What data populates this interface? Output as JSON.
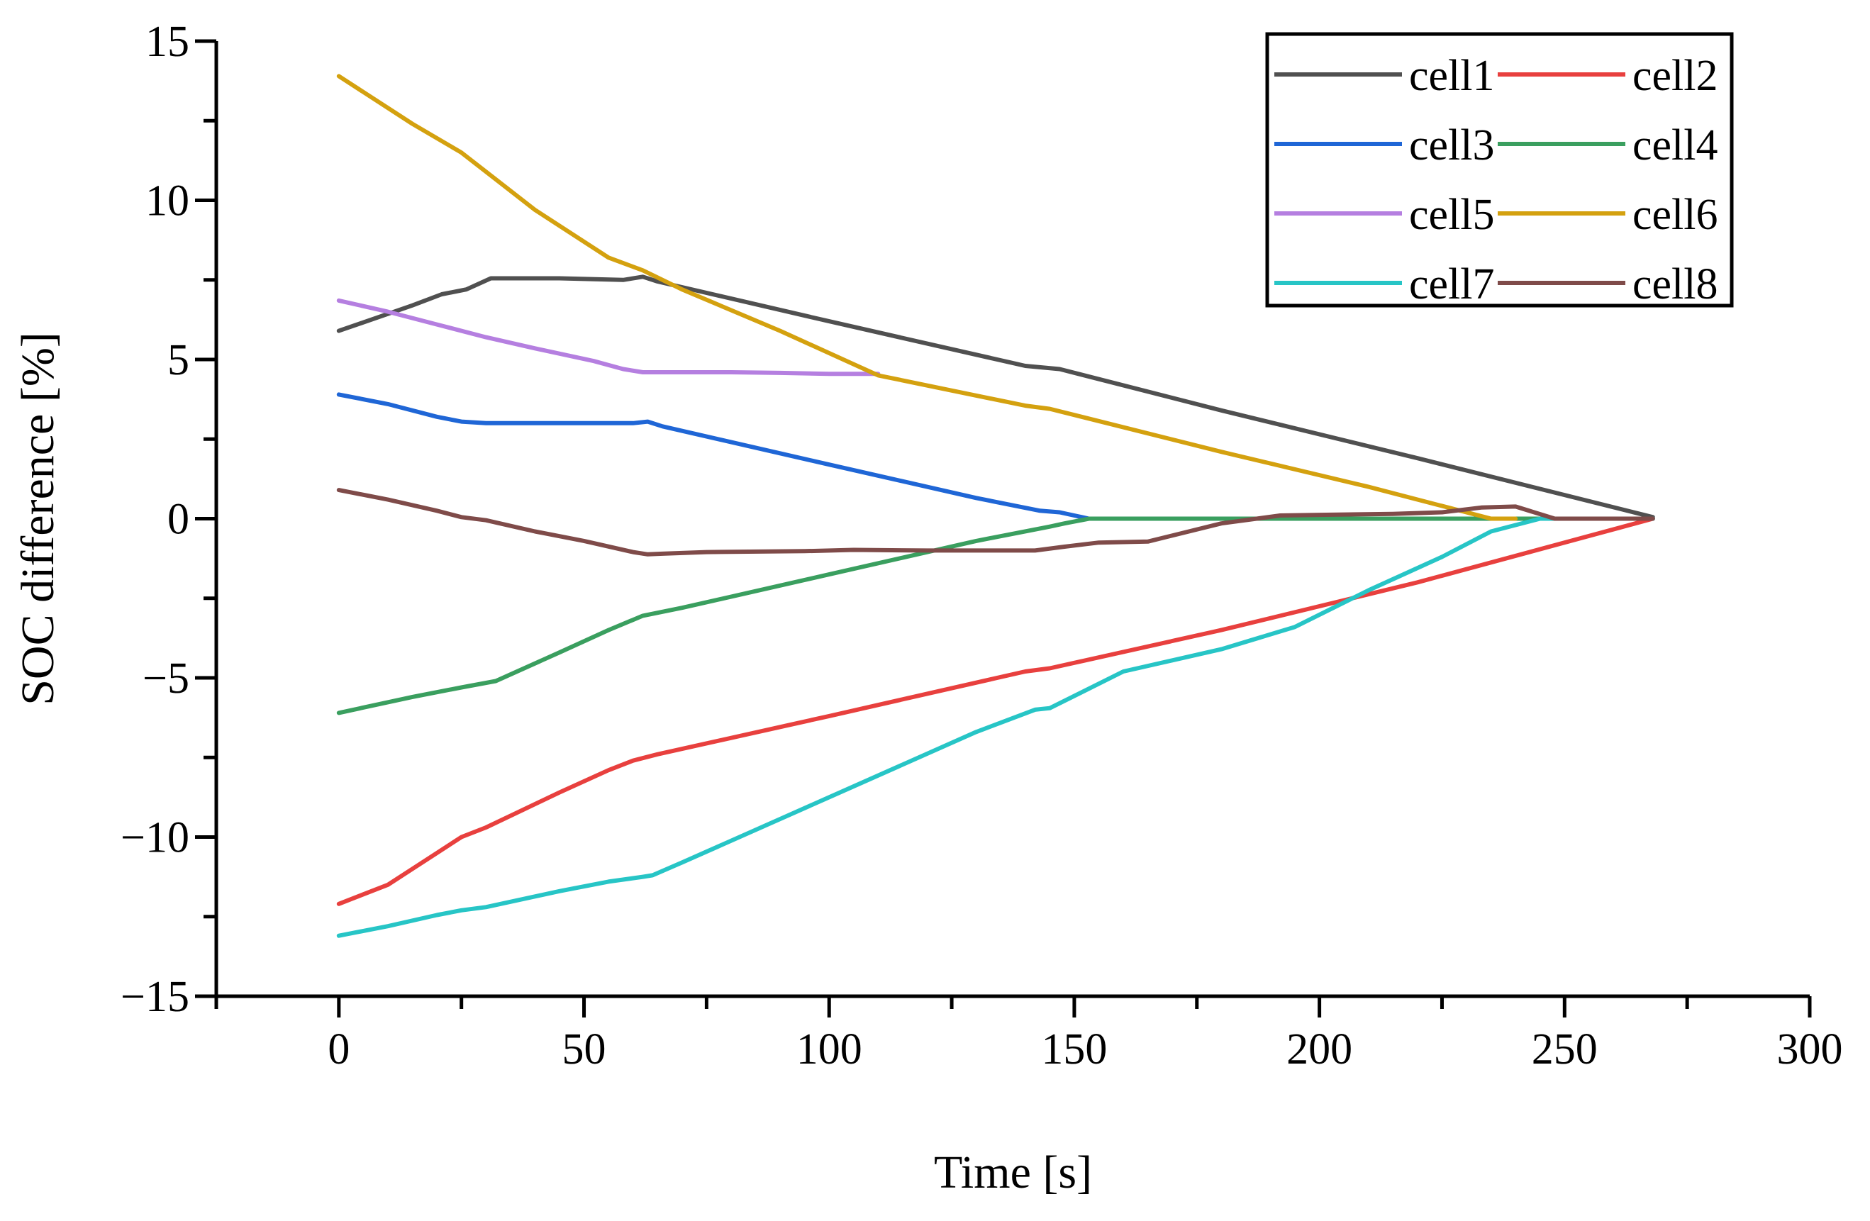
{
  "chart_data": {
    "type": "line",
    "title": "",
    "xlabel": "Time [s]",
    "ylabel": "SOC difference [%]",
    "xlim": [
      -25,
      300
    ],
    "ylim": [
      -15,
      15
    ],
    "xticks": [
      0,
      50,
      100,
      150,
      200,
      250,
      300
    ],
    "xtick_labels": [
      "0",
      "50",
      "100",
      "150",
      "200",
      "250",
      "300"
    ],
    "yticks": [
      -15,
      -10,
      -5,
      0,
      5,
      10,
      15
    ],
    "ytick_labels": [
      "−15",
      "−10",
      "−5",
      "0",
      "5",
      "10",
      "15"
    ],
    "grid": false,
    "legend_position": "top-right",
    "series": [
      {
        "name": "cell1",
        "color": "#505050",
        "x": [
          0,
          15,
          21,
          26,
          31,
          45,
          58,
          62,
          65,
          100,
          140,
          147,
          180,
          220,
          268
        ],
        "y": [
          5.9,
          6.7,
          7.05,
          7.2,
          7.55,
          7.55,
          7.5,
          7.6,
          7.45,
          6.2,
          4.8,
          4.7,
          3.4,
          1.9,
          0.05
        ]
      },
      {
        "name": "cell2",
        "color": "#E8403E",
        "x": [
          0,
          10,
          15,
          20,
          25,
          30,
          45,
          55,
          60,
          65,
          100,
          140,
          145,
          180,
          220,
          268
        ],
        "y": [
          -12.1,
          -11.5,
          -11.0,
          -10.5,
          -10.0,
          -9.7,
          -8.6,
          -7.9,
          -7.6,
          -7.4,
          -6.2,
          -4.8,
          -4.7,
          -3.5,
          -2.0,
          0.0
        ]
      },
      {
        "name": "cell3",
        "color": "#1F66D6",
        "x": [
          0,
          10,
          20,
          25,
          30,
          45,
          60,
          63,
          66,
          100,
          130,
          143,
          147,
          150,
          153,
          268
        ],
        "y": [
          3.9,
          3.6,
          3.2,
          3.05,
          3.0,
          3.0,
          3.0,
          3.05,
          2.9,
          1.7,
          0.65,
          0.25,
          0.2,
          0.1,
          0.0,
          0.0
        ]
      },
      {
        "name": "cell4",
        "color": "#3A9F5F",
        "x": [
          0,
          15,
          25,
          32,
          45,
          55,
          62,
          70,
          100,
          130,
          145,
          148,
          153,
          268
        ],
        "y": [
          -6.1,
          -5.6,
          -5.3,
          -5.1,
          -4.2,
          -3.5,
          -3.05,
          -2.8,
          -1.75,
          -0.7,
          -0.25,
          -0.15,
          0.0,
          0.0
        ]
      },
      {
        "name": "cell5",
        "color": "#B57FE0",
        "x": [
          0,
          10,
          20,
          30,
          40,
          52,
          58,
          62,
          65,
          80,
          90,
          100,
          110
        ],
        "y": [
          6.85,
          6.5,
          6.1,
          5.7,
          5.35,
          4.95,
          4.7,
          4.6,
          4.6,
          4.6,
          4.58,
          4.55,
          4.55
        ]
      },
      {
        "name": "cell6",
        "color": "#D4A10F",
        "x": [
          0,
          15,
          25,
          40,
          55,
          62,
          70,
          90,
          110,
          140,
          145,
          180,
          210,
          235,
          240
        ],
        "y": [
          13.9,
          12.4,
          11.5,
          9.7,
          8.2,
          7.8,
          7.2,
          5.9,
          4.5,
          3.55,
          3.45,
          2.1,
          1.0,
          0.0,
          0.0
        ]
      },
      {
        "name": "cell7",
        "color": "#27C5C6",
        "x": [
          0,
          10,
          20,
          25,
          30,
          45,
          55,
          62,
          64,
          70,
          100,
          130,
          142,
          145,
          160,
          180,
          195,
          210,
          225,
          235,
          245,
          268
        ],
        "y": [
          -13.1,
          -12.8,
          -12.45,
          -12.3,
          -12.2,
          -11.7,
          -11.4,
          -11.25,
          -11.2,
          -10.8,
          -8.75,
          -6.7,
          -6.0,
          -5.95,
          -4.8,
          -4.1,
          -3.4,
          -2.25,
          -1.2,
          -0.4,
          0.0,
          0.0
        ]
      },
      {
        "name": "cell8",
        "color": "#7F4B49",
        "x": [
          0,
          10,
          20,
          25,
          30,
          40,
          50,
          60,
          63,
          66,
          75,
          95,
          105,
          120,
          142,
          148,
          155,
          165,
          180,
          192,
          200,
          215,
          225,
          233,
          240,
          248,
          268
        ],
        "y": [
          0.9,
          0.6,
          0.25,
          0.05,
          -0.05,
          -0.4,
          -0.7,
          -1.05,
          -1.12,
          -1.1,
          -1.05,
          -1.02,
          -0.98,
          -1.0,
          -1.0,
          -0.88,
          -0.75,
          -0.72,
          -0.15,
          0.1,
          0.12,
          0.15,
          0.2,
          0.35,
          0.38,
          0.0,
          0.0
        ]
      }
    ]
  }
}
